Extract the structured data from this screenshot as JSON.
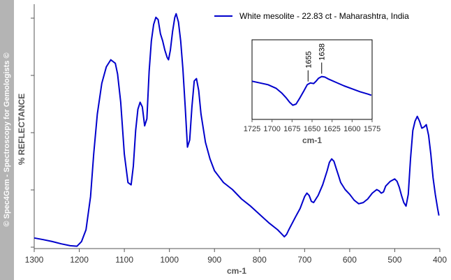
{
  "watermark": "© Spec4Gem - Spectroscopy for Gemologists ©",
  "chart_data": {
    "type": "line",
    "title": "",
    "xlabel": "cm-1",
    "ylabel": "% REFLECTANCE",
    "xlim": [
      1300,
      400
    ],
    "x_reversed": true,
    "ylim": [
      0,
      100
    ],
    "y_ticks_labeled": false,
    "x_ticks": [
      1300,
      1200,
      1100,
      1000,
      900,
      800,
      700,
      600,
      500,
      400
    ],
    "legend": {
      "placement": "top-right",
      "entries": [
        "White mesolite - 22.83 ct - Maharashtra, India"
      ]
    },
    "series": [
      {
        "name": "White mesolite - 22.83 ct - Maharashtra, India",
        "color": "#0000cc",
        "x": [
          1300,
          1280,
          1260,
          1240,
          1220,
          1205,
          1195,
          1185,
          1175,
          1168,
          1160,
          1150,
          1140,
          1130,
          1120,
          1115,
          1108,
          1100,
          1092,
          1085,
          1080,
          1075,
          1070,
          1065,
          1060,
          1055,
          1050,
          1045,
          1040,
          1035,
          1030,
          1025,
          1020,
          1015,
          1010,
          1005,
          1002,
          998,
          993,
          988,
          985,
          980,
          975,
          970,
          965,
          960,
          955,
          950,
          945,
          940,
          935,
          930,
          920,
          910,
          900,
          880,
          860,
          840,
          820,
          800,
          780,
          760,
          750,
          745,
          740,
          735,
          720,
          710,
          700,
          695,
          690,
          685,
          680,
          670,
          660,
          650,
          645,
          640,
          635,
          630,
          625,
          620,
          610,
          600,
          590,
          580,
          570,
          560,
          550,
          540,
          535,
          530,
          525,
          520,
          510,
          500,
          495,
          490,
          485,
          480,
          475,
          470,
          465,
          460,
          455,
          450,
          445,
          440,
          435,
          430,
          425,
          420,
          415,
          410,
          405,
          402
        ],
        "y": [
          4.5,
          3.8,
          3.0,
          2.0,
          1.2,
          1.0,
          3.0,
          8.0,
          22.0,
          40.0,
          57.0,
          70.0,
          77.0,
          80.0,
          78.5,
          74.0,
          62.0,
          40.0,
          28.0,
          27.0,
          35.0,
          50.0,
          59.0,
          62.0,
          60.0,
          52.0,
          55.0,
          75.0,
          88.0,
          95.0,
          98.0,
          97.0,
          91.0,
          88.0,
          84.0,
          81.0,
          80.0,
          84.0,
          92.0,
          98.0,
          99.5,
          96.0,
          88.0,
          76.0,
          60.0,
          43.0,
          46.0,
          60.0,
          71.0,
          72.0,
          67.0,
          57.0,
          45.0,
          38.0,
          33.0,
          28.0,
          25.0,
          21.0,
          18.0,
          14.5,
          11.0,
          8.0,
          6.0,
          5.0,
          6.0,
          8.0,
          13.5,
          17.0,
          22.0,
          23.5,
          22.5,
          20.0,
          19.5,
          22.5,
          27.0,
          33.0,
          36.5,
          38.0,
          37.0,
          34.0,
          31.0,
          28.0,
          25.0,
          23.0,
          20.5,
          19.0,
          19.5,
          21.0,
          23.5,
          25.0,
          24.5,
          23.5,
          24.0,
          26.5,
          28.5,
          29.5,
          28.5,
          26.0,
          22.5,
          19.5,
          18.0,
          23.0,
          38.0,
          50.0,
          54.0,
          56.0,
          54.0,
          51.0,
          51.5,
          52.5,
          48.0,
          40.0,
          30.0,
          23.0,
          17.0,
          14.0
        ]
      }
    ],
    "inset": {
      "xlabel": "cm-1",
      "xlim": [
        1725,
        1575
      ],
      "x_ticks": [
        1725,
        1700,
        1675,
        1650,
        1625,
        1600,
        1575
      ],
      "ylim": [
        0,
        1
      ],
      "series": [
        {
          "name": "White mesolite - 22.83 ct - Maharashtra, India",
          "color": "#0000cc",
          "x": [
            1725,
            1715,
            1705,
            1695,
            1688,
            1682,
            1678,
            1674,
            1670,
            1665,
            1660,
            1656,
            1652,
            1648,
            1645,
            1642,
            1638,
            1634,
            1630,
            1620,
            1610,
            1600,
            1590,
            1580,
            1576
          ],
          "y": [
            0.58,
            0.55,
            0.52,
            0.46,
            0.38,
            0.29,
            0.22,
            0.17,
            0.19,
            0.3,
            0.42,
            0.52,
            0.55,
            0.54,
            0.58,
            0.63,
            0.66,
            0.65,
            0.62,
            0.56,
            0.5,
            0.45,
            0.4,
            0.36,
            0.34
          ]
        }
      ],
      "annotations": [
        {
          "label": "1655",
          "x": 1655
        },
        {
          "label": "1638",
          "x": 1638
        }
      ]
    }
  }
}
